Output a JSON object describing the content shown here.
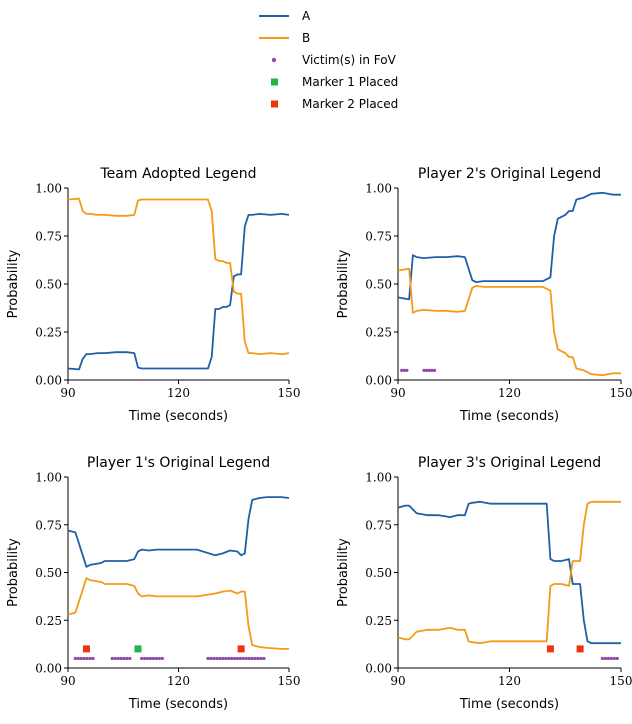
{
  "colors": {
    "A": "#1f5fa8",
    "B": "#f59a16",
    "victim": "#8e4aa8",
    "marker1": "#22b34a",
    "marker2": "#ee3311"
  },
  "legend": {
    "placement": "top-center",
    "entries": [
      {
        "label": "A",
        "kind": "line",
        "color_key": "A"
      },
      {
        "label": "B",
        "kind": "line",
        "color_key": "B"
      },
      {
        "label": "Victim(s) in FoV",
        "kind": "dot",
        "color_key": "victim"
      },
      {
        "label": "Marker 1 Placed",
        "kind": "square",
        "color_key": "marker1"
      },
      {
        "label": "Marker 2 Placed",
        "kind": "square",
        "color_key": "marker2"
      }
    ]
  },
  "chart_data": [
    {
      "type": "line",
      "title": "Team Adopted Legend",
      "xlabel": "Time (seconds)",
      "ylabel": "Probability",
      "xlim": [
        90,
        150
      ],
      "ylim": [
        0,
        1
      ],
      "xticks": [
        "90",
        "120",
        "150"
      ],
      "yticks": [
        "0.00",
        "0.25",
        "0.50",
        "0.75",
        "1.00"
      ],
      "grid": false,
      "series": [
        {
          "name": "A",
          "x": [
            90,
            93,
            94,
            95,
            96,
            98,
            100,
            103,
            106,
            108,
            109,
            110,
            112,
            118,
            125,
            128,
            129,
            130,
            131,
            132,
            133,
            134,
            135,
            136,
            137,
            138,
            139,
            140,
            142,
            145,
            148,
            150
          ],
          "y": [
            0.06,
            0.055,
            0.11,
            0.135,
            0.135,
            0.14,
            0.14,
            0.145,
            0.145,
            0.14,
            0.065,
            0.06,
            0.06,
            0.06,
            0.06,
            0.06,
            0.12,
            0.37,
            0.37,
            0.38,
            0.38,
            0.39,
            0.54,
            0.55,
            0.55,
            0.8,
            0.86,
            0.86,
            0.865,
            0.86,
            0.865,
            0.86
          ]
        },
        {
          "name": "B",
          "x": [
            90,
            93,
            94,
            95,
            96,
            98,
            100,
            103,
            106,
            108,
            109,
            110,
            112,
            118,
            125,
            128,
            129,
            130,
            131,
            132,
            133,
            134,
            135,
            136,
            137,
            138,
            139,
            140,
            142,
            145,
            148,
            150
          ],
          "y": [
            0.94,
            0.945,
            0.88,
            0.865,
            0.865,
            0.86,
            0.86,
            0.855,
            0.855,
            0.86,
            0.935,
            0.94,
            0.94,
            0.94,
            0.94,
            0.94,
            0.88,
            0.63,
            0.62,
            0.62,
            0.61,
            0.61,
            0.46,
            0.45,
            0.45,
            0.2,
            0.14,
            0.14,
            0.135,
            0.14,
            0.135,
            0.14
          ]
        }
      ],
      "victims_x": [],
      "marker1_x": [],
      "marker2_x": []
    },
    {
      "type": "line",
      "title": "Player 2's Original Legend",
      "xlabel": "Time (seconds)",
      "ylabel": "Probability",
      "xlim": [
        90,
        150
      ],
      "ylim": [
        0,
        1
      ],
      "xticks": [
        "90",
        "120",
        "150"
      ],
      "yticks": [
        "0.00",
        "0.25",
        "0.50",
        "0.75",
        "1.00"
      ],
      "grid": false,
      "series": [
        {
          "name": "A",
          "x": [
            90,
            93,
            94,
            95,
            97,
            100,
            103,
            106,
            108,
            110,
            111,
            113,
            118,
            125,
            129,
            131,
            132,
            133,
            135,
            136,
            137,
            138,
            140,
            142,
            145,
            148,
            150
          ],
          "y": [
            0.43,
            0.42,
            0.65,
            0.64,
            0.635,
            0.64,
            0.64,
            0.645,
            0.64,
            0.52,
            0.51,
            0.515,
            0.515,
            0.515,
            0.515,
            0.535,
            0.75,
            0.84,
            0.86,
            0.88,
            0.88,
            0.94,
            0.95,
            0.97,
            0.975,
            0.965,
            0.965
          ]
        },
        {
          "name": "B",
          "x": [
            90,
            93,
            94,
            95,
            97,
            100,
            103,
            106,
            108,
            110,
            111,
            113,
            118,
            125,
            129,
            131,
            132,
            133,
            135,
            136,
            137,
            138,
            140,
            142,
            145,
            148,
            150
          ],
          "y": [
            0.57,
            0.58,
            0.35,
            0.36,
            0.365,
            0.36,
            0.36,
            0.355,
            0.36,
            0.48,
            0.49,
            0.485,
            0.485,
            0.485,
            0.485,
            0.465,
            0.25,
            0.16,
            0.14,
            0.12,
            0.12,
            0.06,
            0.05,
            0.03,
            0.025,
            0.035,
            0.035
          ]
        }
      ],
      "victims_x": [
        91,
        91.7,
        92.4,
        97,
        97.7,
        98.4,
        99.1,
        99.8
      ],
      "marker1_x": [],
      "marker2_x": []
    },
    {
      "type": "line",
      "title": "Player 1's Original Legend",
      "xlabel": "Time (seconds)",
      "ylabel": "Probability",
      "xlim": [
        90,
        150
      ],
      "ylim": [
        0,
        1
      ],
      "xticks": [
        "90",
        "120",
        "150"
      ],
      "yticks": [
        "0.00",
        "0.25",
        "0.50",
        "0.75",
        "1.00"
      ],
      "grid": false,
      "series": [
        {
          "name": "A",
          "x": [
            90,
            92,
            95,
            96,
            99,
            100,
            103,
            106,
            108,
            109,
            110,
            112,
            114,
            118,
            125,
            130,
            132,
            134,
            136,
            137,
            138,
            139,
            140,
            142,
            144,
            148,
            150
          ],
          "y": [
            0.72,
            0.71,
            0.53,
            0.54,
            0.55,
            0.56,
            0.56,
            0.56,
            0.57,
            0.61,
            0.62,
            0.615,
            0.62,
            0.62,
            0.62,
            0.59,
            0.6,
            0.615,
            0.61,
            0.59,
            0.6,
            0.78,
            0.88,
            0.89,
            0.895,
            0.895,
            0.89
          ]
        },
        {
          "name": "B",
          "x": [
            90,
            92,
            95,
            96,
            99,
            100,
            103,
            106,
            108,
            109,
            110,
            112,
            114,
            118,
            125,
            130,
            132,
            134,
            136,
            137,
            138,
            139,
            140,
            142,
            144,
            148,
            150
          ],
          "y": [
            0.28,
            0.29,
            0.47,
            0.46,
            0.45,
            0.44,
            0.44,
            0.44,
            0.43,
            0.39,
            0.375,
            0.38,
            0.375,
            0.375,
            0.375,
            0.39,
            0.4,
            0.405,
            0.39,
            0.4,
            0.4,
            0.22,
            0.12,
            0.11,
            0.105,
            0.1,
            0.1
          ]
        }
      ],
      "victims_x": [
        92,
        92.8,
        93.6,
        94.4,
        95.2,
        96,
        96.8,
        102,
        102.8,
        103.6,
        104.4,
        105.2,
        106,
        106.8,
        110,
        110.8,
        111.6,
        112.4,
        113.2,
        114,
        114.8,
        115.6,
        128,
        128.8,
        129.6,
        130.4,
        131.2,
        132,
        132.8,
        133.6,
        134.4,
        135.2,
        136,
        136.8,
        137.6,
        138.4,
        139.2,
        140,
        140.8,
        141.6,
        142.4,
        143.2
      ],
      "marker1_x": [
        109
      ],
      "marker2_x": [
        95,
        137
      ]
    },
    {
      "type": "line",
      "title": "Player 3's Original Legend",
      "xlabel": "Time (seconds)",
      "ylabel": "Probability",
      "xlim": [
        90,
        150
      ],
      "ylim": [
        0,
        1
      ],
      "xticks": [
        "90",
        "120",
        "150"
      ],
      "yticks": [
        "0.00",
        "0.25",
        "0.50",
        "0.75",
        "1.00"
      ],
      "grid": false,
      "series": [
        {
          "name": "A",
          "x": [
            90,
            92,
            93,
            95,
            98,
            101,
            104,
            106,
            108,
            109,
            110,
            112,
            115,
            119,
            125,
            130,
            131,
            132,
            134,
            136,
            137,
            138,
            139,
            140,
            141,
            142,
            144,
            147,
            150
          ],
          "y": [
            0.84,
            0.85,
            0.85,
            0.81,
            0.8,
            0.8,
            0.79,
            0.8,
            0.8,
            0.86,
            0.865,
            0.87,
            0.86,
            0.86,
            0.86,
            0.86,
            0.57,
            0.56,
            0.56,
            0.57,
            0.44,
            0.44,
            0.44,
            0.25,
            0.14,
            0.13,
            0.13,
            0.13,
            0.13
          ]
        },
        {
          "name": "B",
          "x": [
            90,
            92,
            93,
            95,
            98,
            101,
            104,
            106,
            108,
            109,
            110,
            112,
            115,
            119,
            125,
            130,
            131,
            132,
            134,
            136,
            137,
            138,
            139,
            140,
            141,
            142,
            144,
            147,
            150
          ],
          "y": [
            0.16,
            0.15,
            0.15,
            0.19,
            0.2,
            0.2,
            0.21,
            0.2,
            0.2,
            0.14,
            0.135,
            0.13,
            0.14,
            0.14,
            0.14,
            0.14,
            0.43,
            0.44,
            0.44,
            0.43,
            0.56,
            0.56,
            0.56,
            0.75,
            0.86,
            0.87,
            0.87,
            0.87,
            0.87
          ]
        }
      ],
      "victims_x": [
        145,
        145.8,
        146.6,
        147.4,
        148.2,
        149
      ],
      "marker1_x": [],
      "marker2_x": [
        131,
        139
      ]
    }
  ]
}
